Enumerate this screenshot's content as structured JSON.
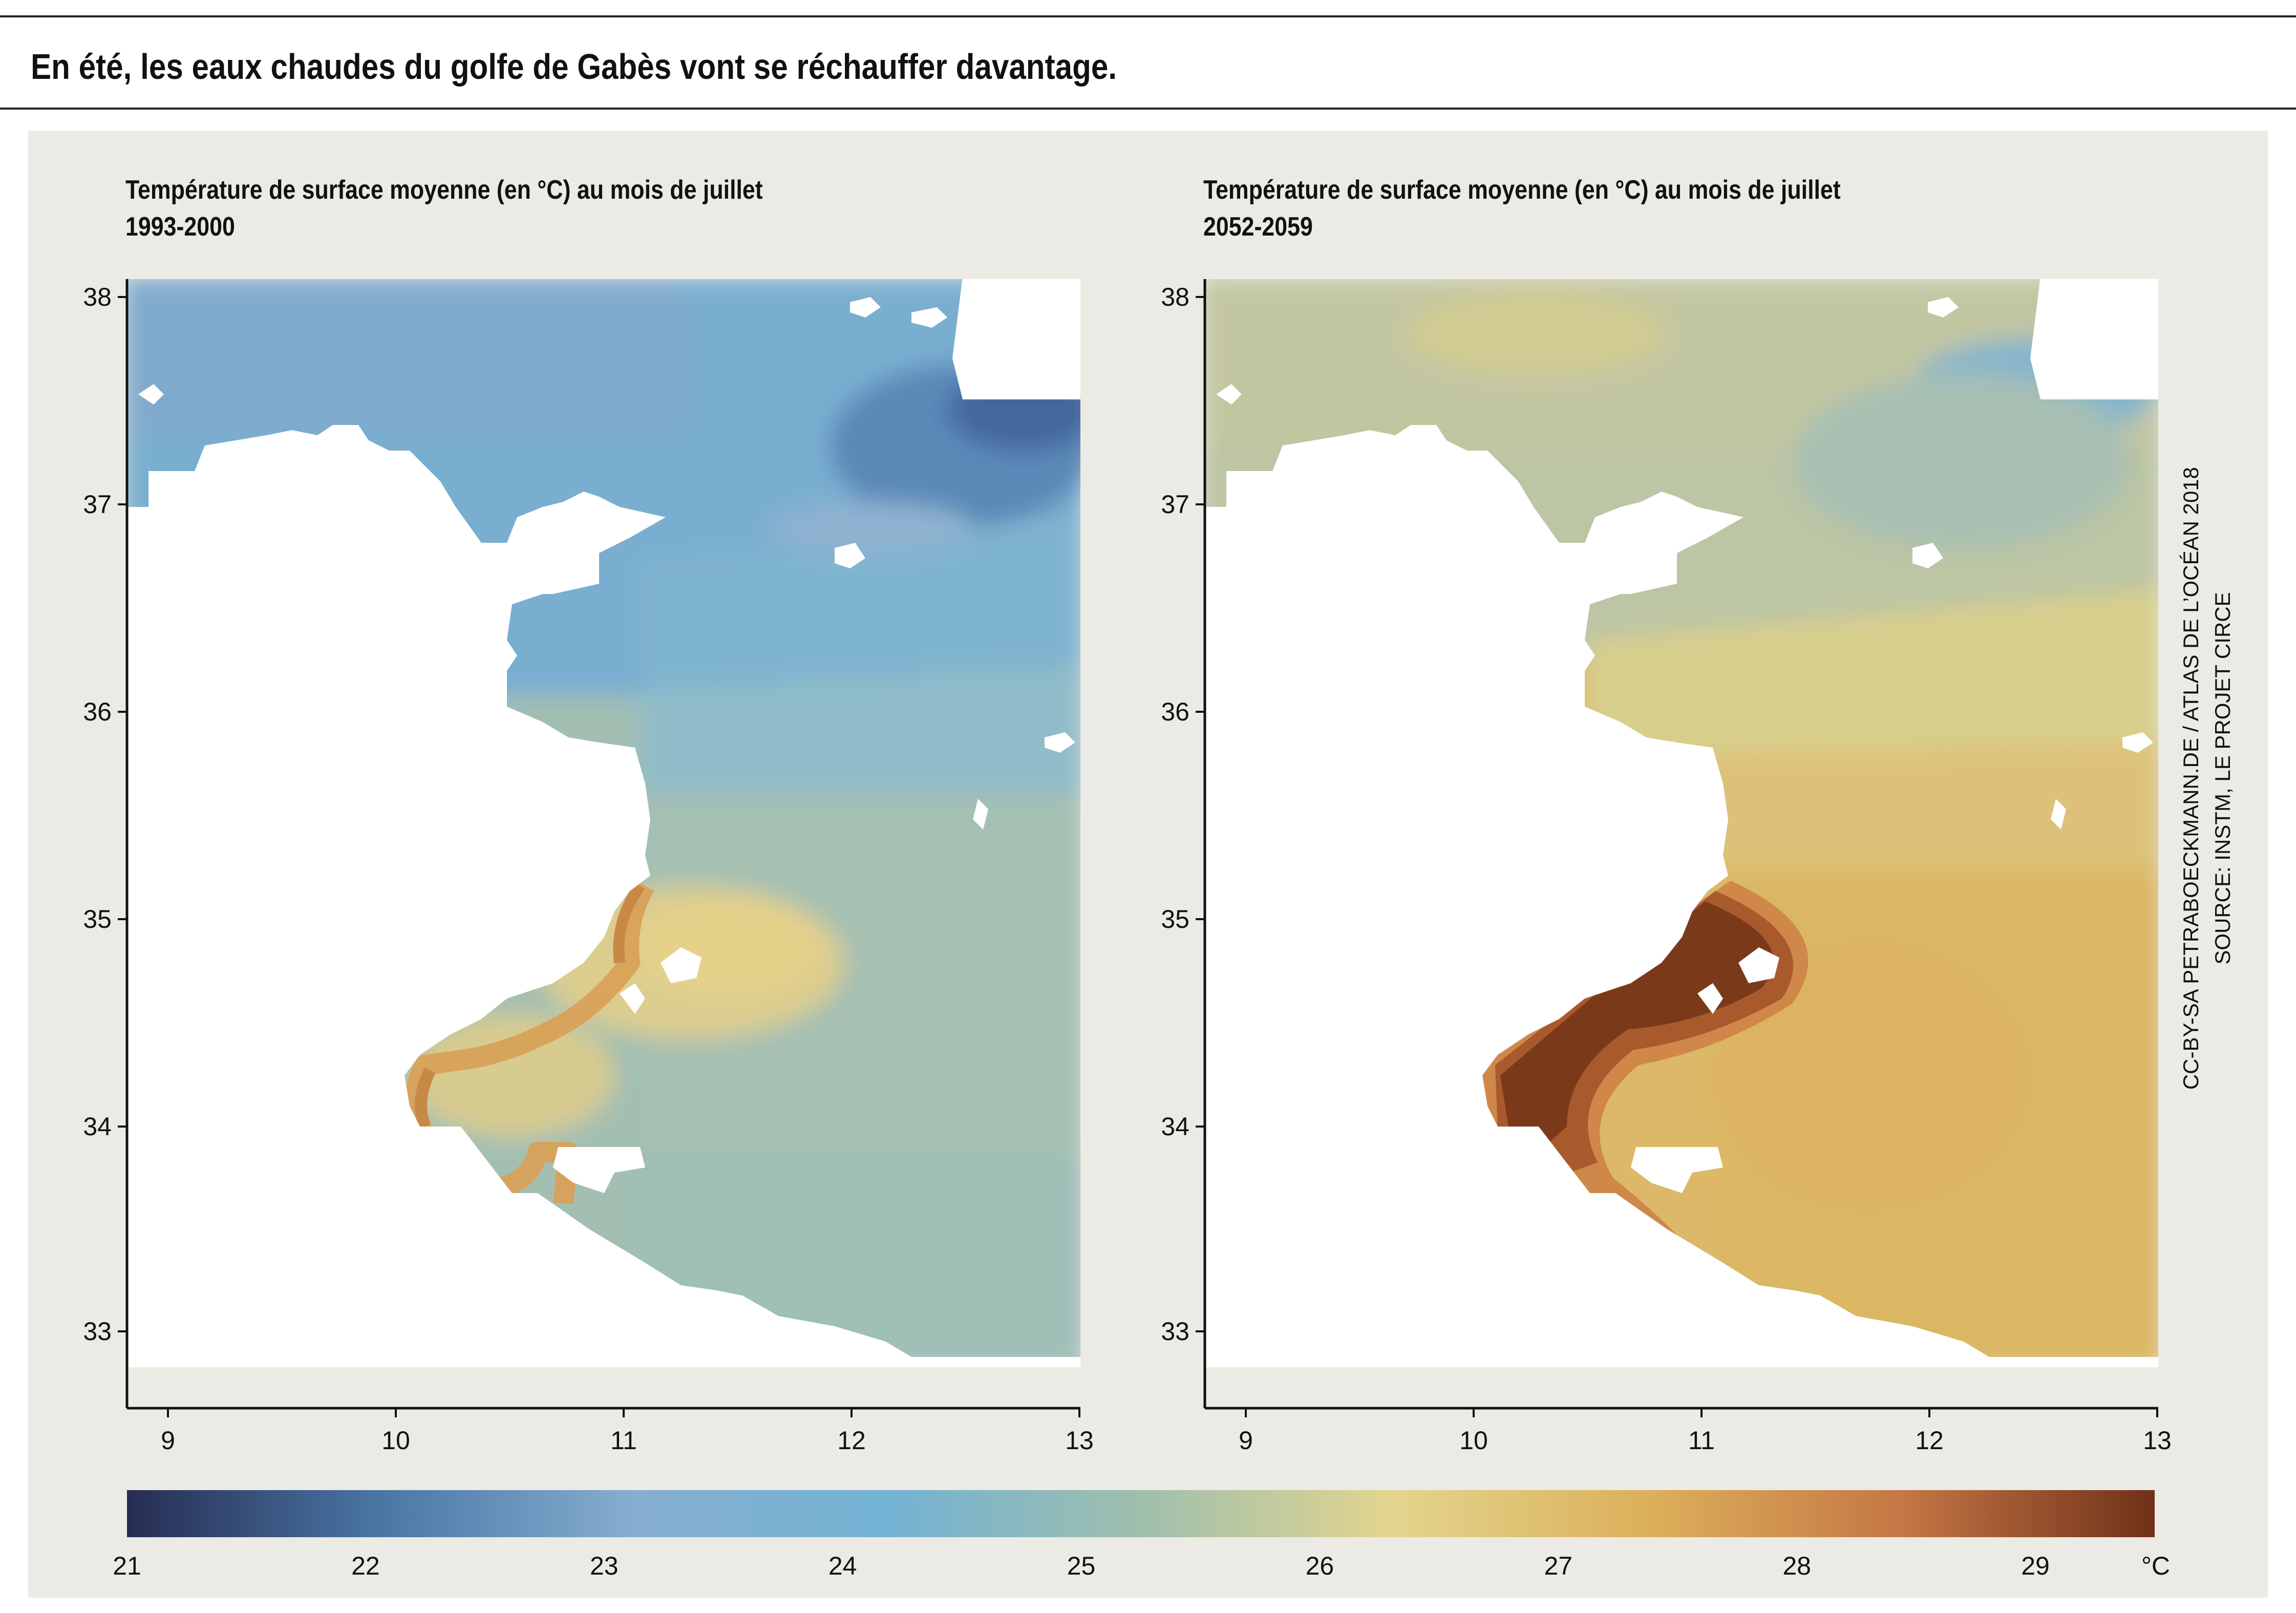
{
  "header": {
    "title": "En été, les eaux chaudes du golfe de Gabès vont se réchauffer davantage."
  },
  "maps": [
    {
      "title_line1": "Température de surface moyenne (en °C) au mois de juillet",
      "title_line2": "1993-2000",
      "y_ticks": [
        "38",
        "37",
        "36",
        "35",
        "34",
        "33"
      ],
      "x_ticks": [
        "9",
        "10",
        "11",
        "12",
        "13"
      ]
    },
    {
      "title_line1": "Température de surface moyenne (en °C) au mois de juillet",
      "title_line2": "2052-2059",
      "y_ticks": [
        "38",
        "37",
        "36",
        "35",
        "34",
        "33"
      ],
      "x_ticks": [
        "9",
        "10",
        "11",
        "12",
        "13"
      ]
    }
  ],
  "legend": {
    "ticks": [
      "21",
      "22",
      "23",
      "24",
      "25",
      "26",
      "27",
      "28",
      "29"
    ],
    "unit": "°C",
    "colors": [
      "#262d52",
      "#4a76a6",
      "#86aed0",
      "#72b2d3",
      "#9fbfad",
      "#e3d58e",
      "#dcb05a",
      "#c57745",
      "#6f3118"
    ]
  },
  "credit": {
    "line1": "CC-BY-SA PETRABOECKMANN.DE / ATLAS DE L’OCÉAN 2018",
    "line2": "SOURCE: INSTM, LE PROJET CIRCE"
  }
}
